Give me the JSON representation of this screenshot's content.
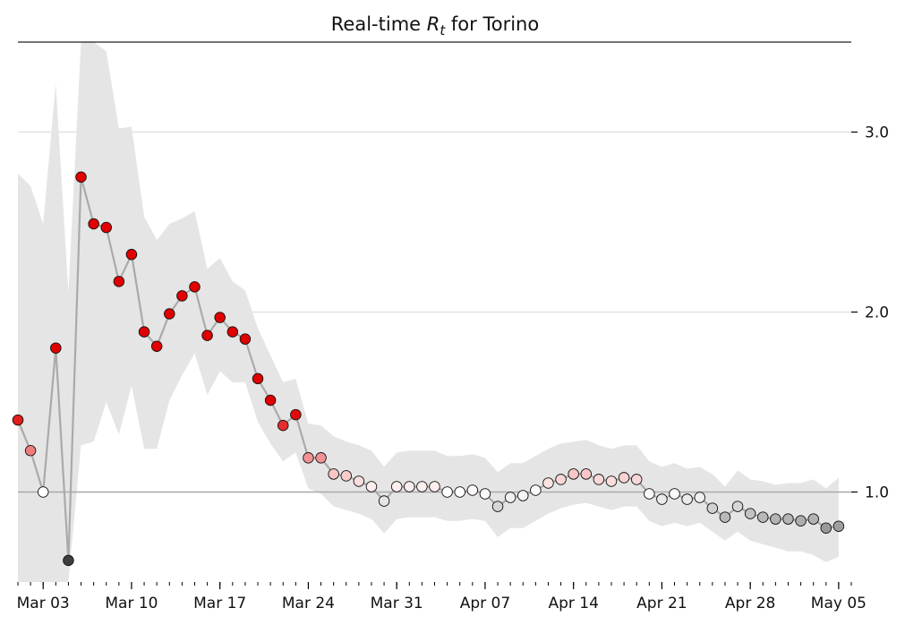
{
  "chart_data": {
    "type": "scatter",
    "title": "Real-time Rt for Torino",
    "title_parts": {
      "prefix": "Real-time ",
      "var": "R",
      "sub": "t",
      "suffix": " for Torino"
    },
    "xlabel": "",
    "ylabel": "",
    "ylim": [
      0.5,
      3.5
    ],
    "y_ticks": [
      1.0,
      2.0,
      3.0
    ],
    "y_tick_labels": [
      "1.0",
      "2.0",
      "3.0"
    ],
    "y_axis_side": "right",
    "grid": "horizontal",
    "reference_line": 1.0,
    "x_start": "2020-03-01",
    "x_end": "2020-05-06",
    "x_major_ticks": [
      "2020-03-03",
      "2020-03-10",
      "2020-03-17",
      "2020-03-24",
      "2020-03-31",
      "2020-04-07",
      "2020-04-14",
      "2020-04-21",
      "2020-04-28",
      "2020-05-05"
    ],
    "x_tick_labels": [
      "Mar 03",
      "Mar 10",
      "Mar 17",
      "Mar 24",
      "Mar 31",
      "Apr 07",
      "Apr 14",
      "Apr 21",
      "Apr 28",
      "May 05"
    ],
    "colors": {
      "high": "#e00000",
      "mid": "#ffffff",
      "low": "#333333",
      "line": "#aaaaaa",
      "band": "#e5e5e5",
      "grid": "#dddddd",
      "ref": "#aaaaaa"
    },
    "x": [
      "2020-03-01",
      "2020-03-02",
      "2020-03-03",
      "2020-03-04",
      "2020-03-05",
      "2020-03-06",
      "2020-03-07",
      "2020-03-08",
      "2020-03-09",
      "2020-03-10",
      "2020-03-11",
      "2020-03-12",
      "2020-03-13",
      "2020-03-14",
      "2020-03-15",
      "2020-03-16",
      "2020-03-17",
      "2020-03-18",
      "2020-03-19",
      "2020-03-20",
      "2020-03-21",
      "2020-03-22",
      "2020-03-23",
      "2020-03-24",
      "2020-03-25",
      "2020-03-26",
      "2020-03-27",
      "2020-03-28",
      "2020-03-29",
      "2020-03-30",
      "2020-03-31",
      "2020-04-01",
      "2020-04-02",
      "2020-04-03",
      "2020-04-04",
      "2020-04-05",
      "2020-04-06",
      "2020-04-07",
      "2020-04-08",
      "2020-04-09",
      "2020-04-10",
      "2020-04-11",
      "2020-04-12",
      "2020-04-13",
      "2020-04-14",
      "2020-04-15",
      "2020-04-16",
      "2020-04-17",
      "2020-04-18",
      "2020-04-19",
      "2020-04-20",
      "2020-04-21",
      "2020-04-22",
      "2020-04-23",
      "2020-04-24",
      "2020-04-25",
      "2020-04-26",
      "2020-04-27",
      "2020-04-28",
      "2020-04-29",
      "2020-04-30",
      "2020-05-01",
      "2020-05-02",
      "2020-05-03",
      "2020-05-04",
      "2020-05-05"
    ],
    "values": [
      1.4,
      1.23,
      1.0,
      1.8,
      0.62,
      2.75,
      2.49,
      2.47,
      2.17,
      2.32,
      1.89,
      1.81,
      1.99,
      2.09,
      2.14,
      1.87,
      1.97,
      1.89,
      1.85,
      1.63,
      1.51,
      1.37,
      1.43,
      1.19,
      1.19,
      1.1,
      1.09,
      1.06,
      1.03,
      0.95,
      1.03,
      1.03,
      1.03,
      1.03,
      1.0,
      1.0,
      1.01,
      0.99,
      0.92,
      0.97,
      0.98,
      1.01,
      1.05,
      1.07,
      1.1,
      1.1,
      1.07,
      1.06,
      1.08,
      1.07,
      0.99,
      0.96,
      0.99,
      0.96,
      0.97,
      0.91,
      0.86,
      0.92,
      0.88,
      0.86,
      0.85,
      0.85,
      0.84,
      0.85,
      0.8,
      0.81
    ],
    "lower": [
      0.5,
      0.5,
      0.5,
      0.5,
      0.5,
      1.26,
      1.28,
      1.5,
      1.32,
      1.59,
      1.24,
      1.24,
      1.51,
      1.65,
      1.77,
      1.54,
      1.67,
      1.61,
      1.61,
      1.39,
      1.27,
      1.17,
      1.22,
      1.02,
      0.99,
      0.92,
      0.9,
      0.88,
      0.85,
      0.77,
      0.85,
      0.86,
      0.86,
      0.86,
      0.84,
      0.84,
      0.85,
      0.84,
      0.75,
      0.8,
      0.8,
      0.84,
      0.88,
      0.91,
      0.93,
      0.94,
      0.92,
      0.9,
      0.92,
      0.92,
      0.84,
      0.81,
      0.83,
      0.81,
      0.83,
      0.78,
      0.73,
      0.78,
      0.73,
      0.71,
      0.69,
      0.67,
      0.67,
      0.65,
      0.61,
      0.64
    ],
    "upper": [
      2.77,
      2.7,
      2.49,
      3.27,
      2.11,
      3.55,
      3.55,
      3.45,
      3.02,
      3.03,
      2.53,
      2.4,
      2.49,
      2.52,
      2.56,
      2.24,
      2.3,
      2.17,
      2.12,
      1.91,
      1.76,
      1.61,
      1.63,
      1.38,
      1.37,
      1.31,
      1.28,
      1.26,
      1.23,
      1.14,
      1.22,
      1.23,
      1.23,
      1.23,
      1.2,
      1.2,
      1.21,
      1.19,
      1.11,
      1.16,
      1.16,
      1.2,
      1.24,
      1.27,
      1.28,
      1.29,
      1.26,
      1.24,
      1.26,
      1.26,
      1.17,
      1.14,
      1.16,
      1.13,
      1.14,
      1.1,
      1.03,
      1.12,
      1.07,
      1.06,
      1.04,
      1.05,
      1.05,
      1.07,
      1.02,
      1.08
    ]
  }
}
